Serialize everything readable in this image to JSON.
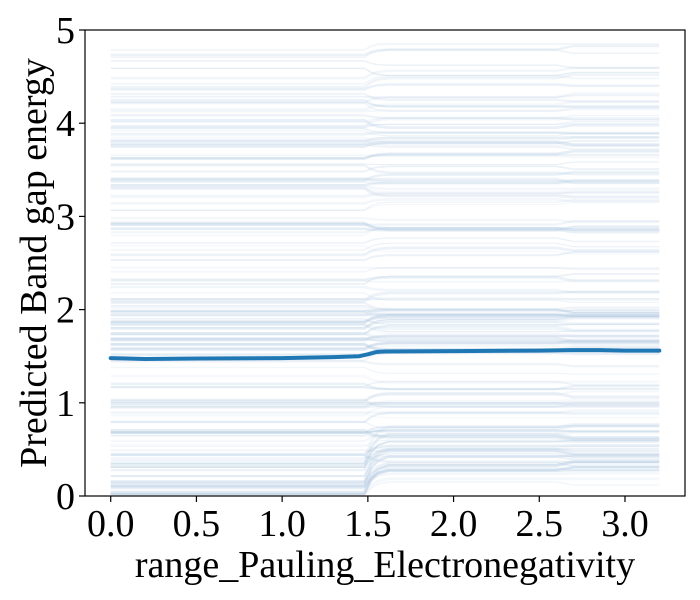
{
  "chart_data": {
    "type": "line",
    "title": "",
    "xlabel": "range_Pauling_Electronegativity",
    "ylabel": "Predicted Band gap energy",
    "xlim": [
      -0.15,
      3.35
    ],
    "ylim": [
      0,
      5
    ],
    "xticks": [
      0.0,
      0.5,
      1.0,
      1.5,
      2.0,
      2.5,
      3.0
    ],
    "xtick_labels": [
      "0.0",
      "0.5",
      "1.0",
      "1.5",
      "2.0",
      "2.5",
      "3.0"
    ],
    "yticks": [
      0,
      1,
      2,
      3,
      4,
      5
    ],
    "ytick_labels": [
      "0",
      "1",
      "2",
      "3",
      "4",
      "5"
    ],
    "grid": false,
    "legend": "none",
    "colors": {
      "average": "#1f77b4",
      "individual": "#aec7e0"
    },
    "series": [
      {
        "role": "average",
        "x": [
          0.0,
          0.2,
          0.5,
          1.0,
          1.3,
          1.45,
          1.5,
          1.55,
          1.6,
          2.0,
          2.5,
          2.7,
          2.85,
          3.0,
          3.2
        ],
        "y": [
          1.48,
          1.47,
          1.475,
          1.48,
          1.49,
          1.5,
          1.52,
          1.545,
          1.55,
          1.555,
          1.56,
          1.565,
          1.565,
          1.56,
          1.56
        ]
      }
    ]
  }
}
